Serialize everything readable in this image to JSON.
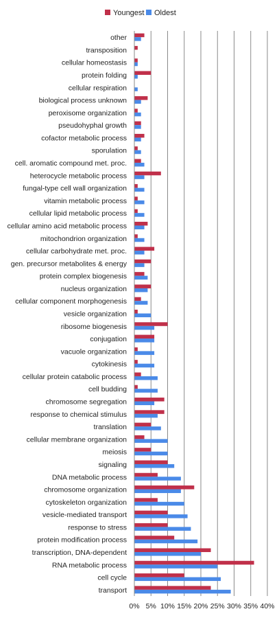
{
  "chart_data": {
    "type": "bar",
    "orientation": "horizontal",
    "categories": [
      "other",
      "transposition",
      "cellular homeostasis",
      "protein folding",
      "cellular respiration",
      "biological process unknown",
      "peroxisome organization",
      "pseudohyphal growth",
      "cofactor metabolic process",
      "sporulation",
      "cell. aromatic compound met. proc.",
      "heterocycle metabolic process",
      "fungal-type cell wall organization",
      "vitamin metabolic process",
      "cellular lipid metabolic process",
      "cellular amino acid metabolic process",
      "mitochondrion organization",
      "cellular carbohydrate met. proc.",
      "gen. precursor metabolites & energy",
      "protein complex biogenesis",
      "nucleus organization",
      "cellular component morphogenesis",
      "vesicle organization",
      "ribosome biogenesis",
      "conjugation",
      "vacuole organization",
      "cytokinesis",
      "cellular protein catabolic process",
      "cell budding",
      "chromosome segregation",
      "response to chemical stimulus",
      "translation",
      "cellular membrane organization",
      "meiosis",
      "signaling",
      "DNA metabolic process",
      "chromosome organization",
      "cytoskeleton organization",
      "vesicle-mediated transport",
      "response to stress",
      "protein modification process",
      "transcription, DNA-dependent",
      "RNA metabolic process",
      "cell cycle",
      "transport"
    ],
    "series": [
      {
        "name": "Youngest",
        "color": "#C0304A",
        "values": [
          3,
          1,
          1,
          5,
          0,
          4,
          1,
          2,
          3,
          1,
          2,
          8,
          1,
          1,
          1,
          4,
          1,
          6,
          5,
          3,
          5,
          2,
          1,
          10,
          6,
          1,
          1,
          2,
          1,
          9,
          9,
          5,
          3,
          5,
          10,
          7,
          18,
          7,
          10,
          10,
          12,
          23,
          36,
          15,
          23
        ]
      },
      {
        "name": "Oldest",
        "color": "#4A8AE8",
        "values": [
          2,
          0,
          1,
          1,
          1,
          2,
          2,
          2,
          2,
          2,
          3,
          3,
          3,
          3,
          3,
          3,
          3,
          3,
          3,
          4,
          4,
          4,
          5,
          6,
          6,
          6,
          6,
          7,
          7,
          6,
          7,
          8,
          10,
          10,
          12,
          14,
          14,
          15,
          16,
          17,
          19,
          20,
          25,
          26,
          29
        ]
      }
    ],
    "xlim": [
      0,
      40
    ],
    "xticks": [
      "0%",
      "5%",
      "10%",
      "15%",
      "20%",
      "25%",
      "30%",
      "35%",
      "40%"
    ],
    "grid": true,
    "legend_position": "top"
  }
}
